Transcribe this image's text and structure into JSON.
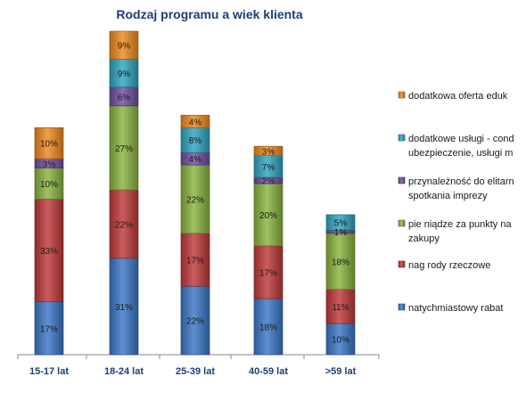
{
  "chart_data": {
    "type": "bar",
    "stacked": true,
    "percent_stacked": true,
    "title": "Rodzaj programu a wiek klienta",
    "categories": [
      "15-17 lat",
      "18-24 lat",
      "25-39 lat",
      "40-59 lat",
      ">59 lat"
    ],
    "series": [
      {
        "name": "natychmiastowy rabat",
        "label_lines": [
          "natychmiastowy rabat"
        ],
        "color": "#3c78c8",
        "values": [
          17,
          31,
          22,
          18,
          10
        ]
      },
      {
        "name": "nagrody rzeczowe",
        "label_lines": [
          "nag rody rzeczowe"
        ],
        "color": "#c0393b",
        "values": [
          33,
          22,
          17,
          17,
          11
        ]
      },
      {
        "name": "pieniądze za punkty na zakupy",
        "label_lines": [
          "pie niądze za  punkty na",
          "zakupy"
        ],
        "color": "#8ab440",
        "values": [
          10,
          27,
          22,
          20,
          18
        ]
      },
      {
        "name": "przynależność do elitarnych spotkania imprezy",
        "label_lines": [
          "przynależność do elitarn",
          "spotkania imprezy"
        ],
        "color": "#6f4f9e",
        "values": [
          3,
          6,
          4,
          2,
          1
        ]
      },
      {
        "name": "dodatkowe usługi - ubezpieczenie, usługi",
        "label_lines": [
          "dodatkowe usługi - cond",
          "ubezpieczenie, usługi m"
        ],
        "color": "#2fa6c0",
        "values": [
          0,
          9,
          8,
          7,
          5
        ]
      },
      {
        "name": "dodatkowa oferta eduk",
        "label_lines": [
          "dodatkowa oferta eduk"
        ],
        "color": "#ef8a1f",
        "values": [
          10,
          9,
          4,
          3,
          0
        ]
      }
    ],
    "data_labels": [
      [
        "17%",
        "31%",
        "22%",
        "18%",
        "10%"
      ],
      [
        "33%",
        "22%",
        "17%",
        "17%",
        "11%"
      ],
      [
        "10%",
        "27%",
        "22%",
        "20%",
        "18%"
      ],
      [
        "3%",
        "6%",
        "4%",
        "2%",
        "1%"
      ],
      [
        "",
        "9%",
        "8%",
        "7%",
        "5%"
      ],
      [
        "10%",
        "9%",
        "4%",
        "3%",
        ""
      ]
    ],
    "ylim": [
      0,
      100
    ],
    "legend_position": "right",
    "grid": false
  }
}
